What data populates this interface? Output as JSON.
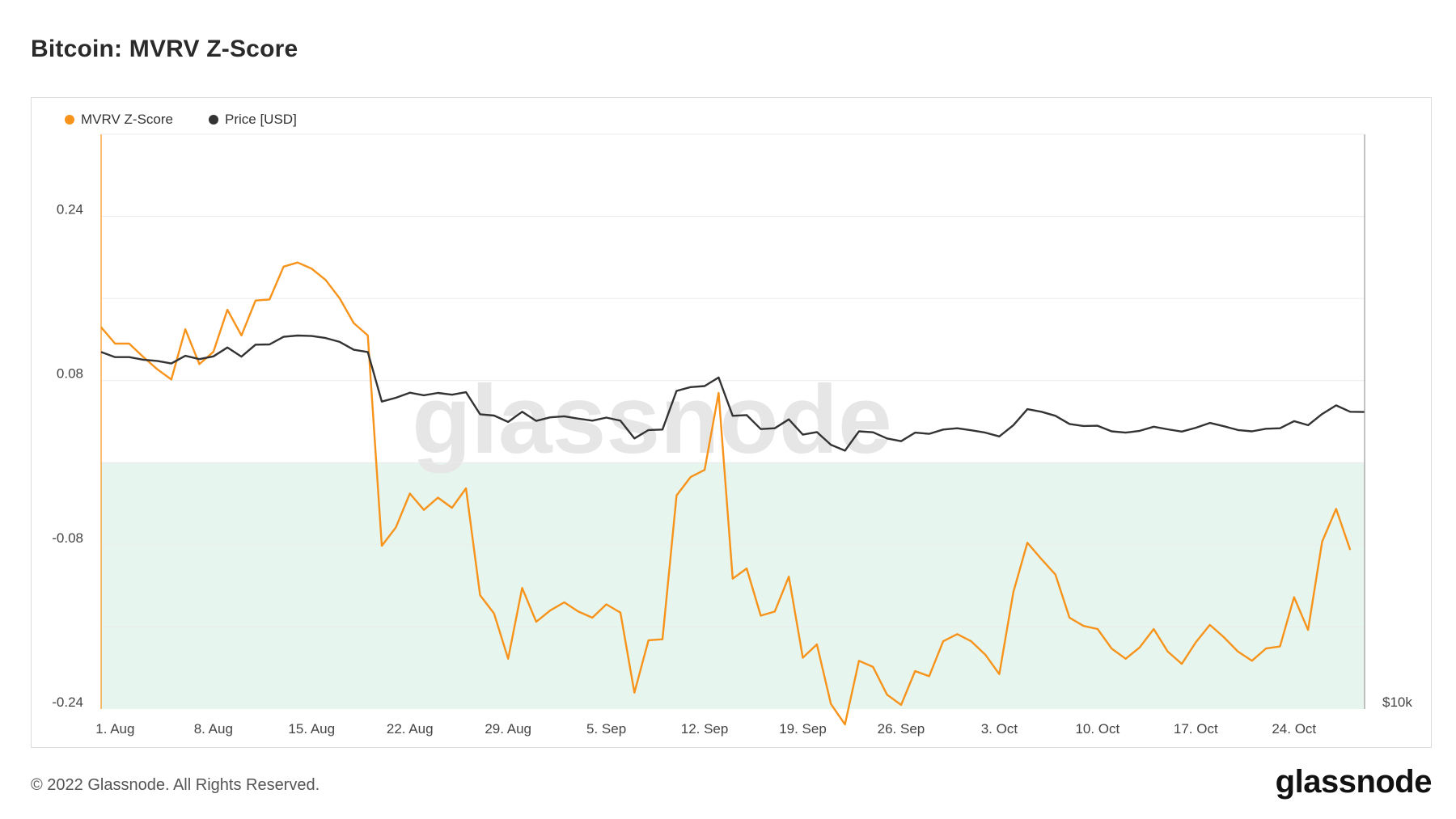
{
  "page": {
    "title": "Bitcoin: MVRV Z-Score",
    "copyright": "© 2022 Glassnode. All Rights Reserved.",
    "logo_text": "glassnode",
    "watermark": "glassnode"
  },
  "chart_data": {
    "type": "line",
    "title": "Bitcoin: MVRV Z-Score",
    "legend": [
      {
        "name": "MVRV Z-Score",
        "color": "#f7931a"
      },
      {
        "name": "Price [USD]",
        "color": "#333333"
      }
    ],
    "legend_placement": "top-left",
    "x_tick_labels": [
      "1. Aug",
      "8. Aug",
      "15. Aug",
      "22. Aug",
      "29. Aug",
      "5. Sep",
      "12. Sep",
      "19. Sep",
      "26. Sep",
      "3. Oct",
      "10. Oct",
      "17. Oct",
      "24. Oct"
    ],
    "y_left": {
      "ticks": [
        0.24,
        0.08,
        -0.08,
        -0.24
      ],
      "tick_labels": [
        "0.24",
        "0.08",
        "-0.08",
        "-0.24"
      ],
      "range": [
        -0.24,
        0.32
      ]
    },
    "y_right": {
      "tick_labels": [
        "$10k"
      ]
    },
    "grid": true,
    "shaded_band": {
      "from": -0.24,
      "to": -0.0,
      "color": "#e6f6ee"
    },
    "x_start": "2022-07-31",
    "series": [
      {
        "name": "MVRV Z-Score",
        "axis": "left",
        "color": "#f7931a",
        "values": [
          0.132,
          0.116,
          0.116,
          0.103,
          0.091,
          0.081,
          0.13,
          0.096,
          0.108,
          0.149,
          0.124,
          0.158,
          0.159,
          0.191,
          0.195,
          0.189,
          0.178,
          0.16,
          0.136,
          0.124,
          -0.081,
          -0.063,
          -0.03,
          -0.046,
          -0.034,
          -0.044,
          -0.025,
          -0.129,
          -0.147,
          -0.191,
          -0.122,
          -0.155,
          -0.144,
          -0.136,
          -0.145,
          -0.151,
          -0.138,
          -0.146,
          -0.224,
          -0.173,
          -0.172,
          -0.032,
          -0.014,
          -0.007,
          0.068,
          -0.113,
          -0.103,
          -0.149,
          -0.145,
          -0.111,
          -0.19,
          -0.177,
          -0.235,
          -0.255,
          -0.193,
          -0.199,
          -0.226,
          -0.236,
          -0.203,
          -0.208,
          -0.174,
          -0.167,
          -0.174,
          -0.187,
          -0.206,
          -0.126,
          -0.078,
          -0.094,
          -0.109,
          -0.151,
          -0.159,
          -0.162,
          -0.181,
          -0.191,
          -0.18,
          -0.162,
          -0.184,
          -0.196,
          -0.175,
          -0.158,
          -0.17,
          -0.184,
          -0.193,
          -0.181,
          -0.179,
          -0.131,
          -0.163,
          -0.077,
          -0.045,
          -0.085
        ]
      },
      {
        "name": "Price [USD]",
        "axis": "right",
        "color": "#333333",
        "values": [
          23300,
          23100,
          23100,
          23000,
          22950,
          22850,
          23150,
          23020,
          23130,
          23480,
          23120,
          23590,
          23600,
          23900,
          23950,
          23930,
          23850,
          23700,
          23390,
          23300,
          21350,
          21500,
          21700,
          21600,
          21690,
          21620,
          21720,
          20850,
          20800,
          20550,
          20950,
          20590,
          20730,
          20770,
          20680,
          20600,
          20720,
          20600,
          19900,
          20230,
          20250,
          21770,
          21920,
          21960,
          22300,
          20790,
          20820,
          20270,
          20300,
          20650,
          20050,
          20150,
          19650,
          19420,
          20180,
          20140,
          19900,
          19790,
          20130,
          20080,
          20250,
          20300,
          20220,
          20130,
          19980,
          20420,
          21050,
          20950,
          20790,
          20470,
          20390,
          20400,
          20180,
          20130,
          20200,
          20360,
          20260,
          20170,
          20320,
          20510,
          20380,
          20230,
          20180,
          20280,
          20300,
          20580,
          20420,
          20860,
          21200,
          20950,
          20940
        ]
      }
    ]
  }
}
